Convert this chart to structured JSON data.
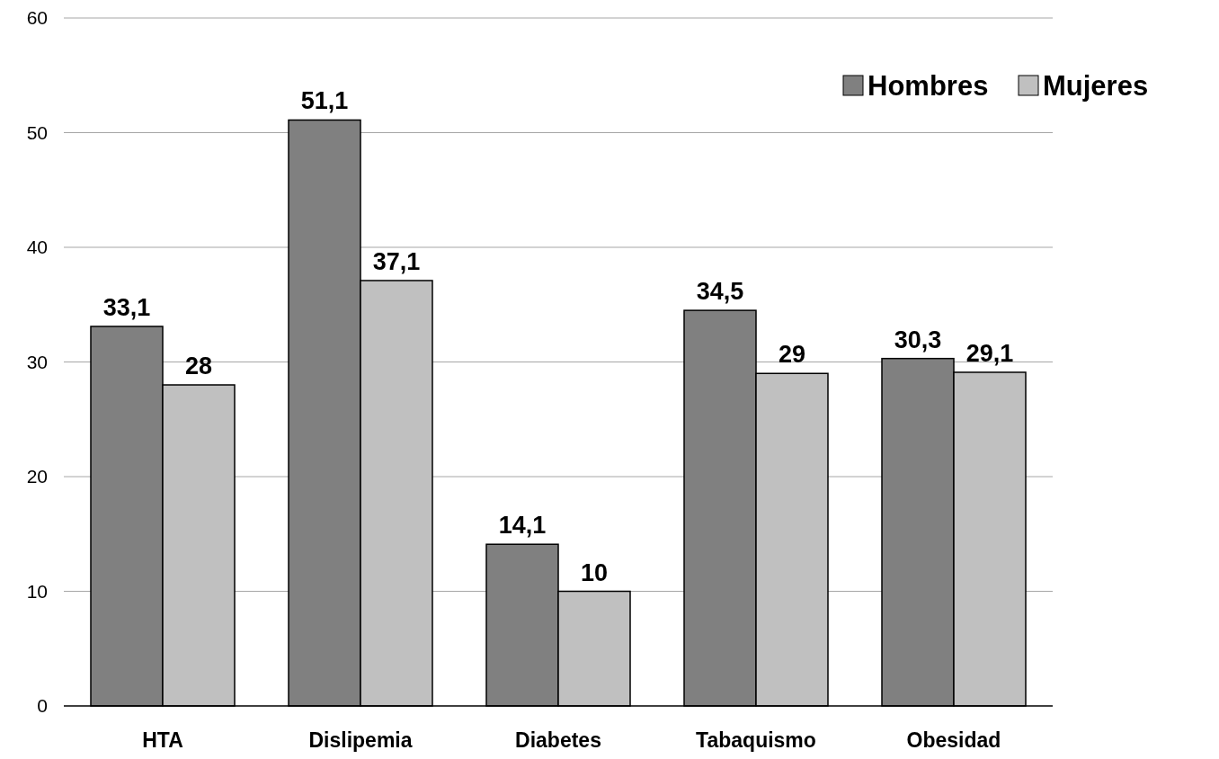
{
  "chart_data": {
    "type": "bar",
    "categories": [
      "HTA",
      "Dislipemia",
      "Diabetes",
      "Tabaquismo",
      "Obesidad"
    ],
    "series": [
      {
        "name": "Hombres",
        "color": "#808080",
        "values": [
          33.1,
          51.1,
          14.1,
          34.5,
          30.3
        ],
        "value_labels": [
          "33,1",
          "51,1",
          "14,1",
          "34,5",
          "30,3"
        ]
      },
      {
        "name": "Mujeres",
        "color": "#c0c0c0",
        "values": [
          28,
          37.1,
          10,
          29,
          29.1
        ],
        "value_labels": [
          "28",
          "37,1",
          "10",
          "29",
          "29,1"
        ]
      }
    ],
    "ylim": [
      0,
      60
    ],
    "yticks": [
      0,
      10,
      20,
      30,
      40,
      50,
      60
    ],
    "grid": "y",
    "legend": "top right"
  }
}
